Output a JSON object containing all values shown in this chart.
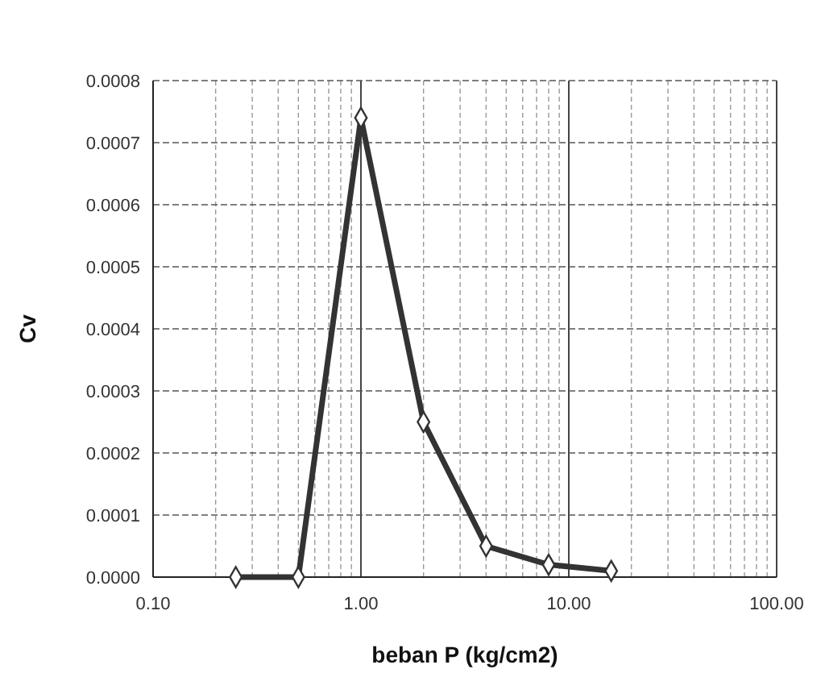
{
  "chart_data": {
    "type": "line",
    "xlabel": "beban P (kg/cm2)",
    "ylabel": "Cv",
    "x": [
      0.25,
      0.5,
      1,
      2,
      4,
      8,
      16
    ],
    "series": [
      {
        "color": "#333333",
        "values": [
          0,
          0,
          0.00074,
          0.00025,
          5e-05,
          2e-05,
          1e-05
        ]
      }
    ],
    "log": "x",
    "xlim": [
      0.1,
      100
    ],
    "xticks": [
      {
        "value": 0.1,
        "label": "0.10"
      },
      {
        "value": 0.2,
        "label": null
      },
      {
        "value": 0.3,
        "label": null
      },
      {
        "value": 0.4,
        "label": null
      },
      {
        "value": 0.5,
        "label": null
      },
      {
        "value": 0.6,
        "label": null
      },
      {
        "value": 0.7,
        "label": null
      },
      {
        "value": 0.8,
        "label": null
      },
      {
        "value": 0.9,
        "label": null
      },
      {
        "value": 1,
        "label": "1.00"
      },
      {
        "value": 2,
        "label": null
      },
      {
        "value": 3,
        "label": null
      },
      {
        "value": 4,
        "label": null
      },
      {
        "value": 5,
        "label": null
      },
      {
        "value": 6,
        "label": null
      },
      {
        "value": 7,
        "label": null
      },
      {
        "value": 8,
        "label": null
      },
      {
        "value": 9,
        "label": null
      },
      {
        "value": 10,
        "label": "10.00"
      },
      {
        "value": 20,
        "label": null
      },
      {
        "value": 30,
        "label": null
      },
      {
        "value": 40,
        "label": null
      },
      {
        "value": 50,
        "label": null
      },
      {
        "value": 60,
        "label": null
      },
      {
        "value": 70,
        "label": null
      },
      {
        "value": 80,
        "label": null
      },
      {
        "value": 90,
        "label": null
      },
      {
        "value": 100,
        "label": "100.00"
      }
    ],
    "ylim": [
      0,
      0.0008
    ],
    "yticks": [
      {
        "value": 0,
        "label": "0.0000"
      },
      {
        "value": 0.0001,
        "label": "0.0001"
      },
      {
        "value": 0.0002,
        "label": "0.0002"
      },
      {
        "value": 0.0003,
        "label": "0.0003"
      },
      {
        "value": 0.0004,
        "label": "0.0004"
      },
      {
        "value": 0.0005,
        "label": "0.0005"
      },
      {
        "value": 0.0006,
        "label": "0.0006"
      },
      {
        "value": 0.0007,
        "label": "0.0007"
      },
      {
        "value": 0.0008,
        "label": "0.0008"
      }
    ],
    "grid": true,
    "marker": "diamond",
    "line_style": "solid"
  }
}
